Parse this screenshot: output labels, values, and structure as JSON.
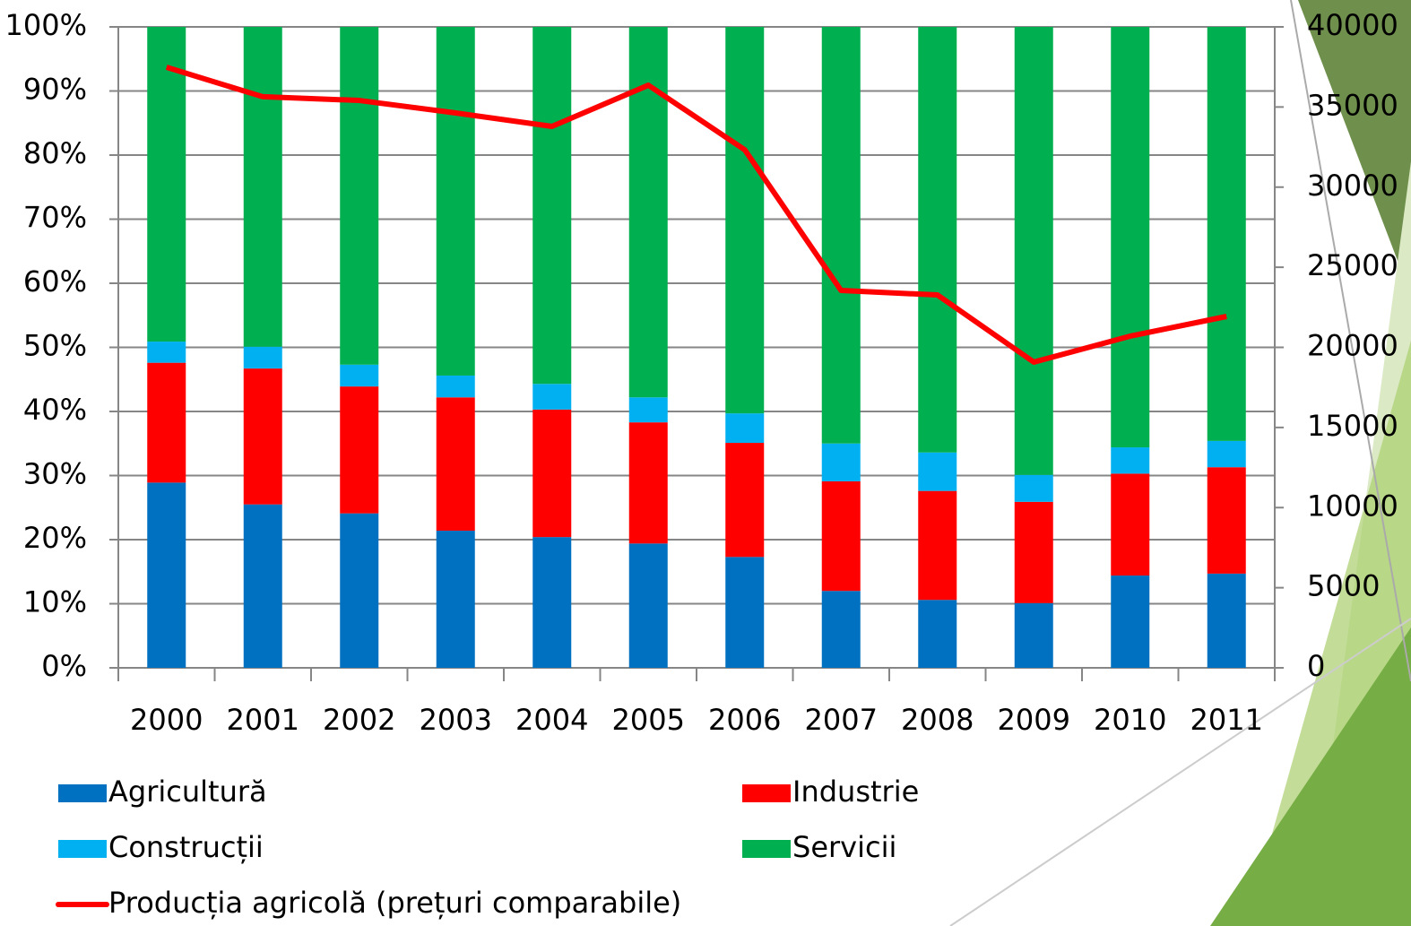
{
  "chart_data": {
    "type": "stacked-bar-line",
    "categories": [
      "2000",
      "2001",
      "2002",
      "2003",
      "2004",
      "2005",
      "2006",
      "2007",
      "2008",
      "2009",
      "2010",
      "2011"
    ],
    "series": [
      {
        "name": "Agricultură",
        "color": "#0070c0",
        "values": [
          28.9,
          25.5,
          24.1,
          21.4,
          20.4,
          19.4,
          17.3,
          12.0,
          10.6,
          10.1,
          14.4,
          14.7
        ]
      },
      {
        "name": "Industrie",
        "color": "#ff0000",
        "values": [
          18.7,
          21.2,
          19.8,
          20.8,
          19.9,
          18.9,
          17.8,
          17.1,
          17.0,
          15.8,
          15.9,
          16.6
        ]
      },
      {
        "name": "Construcții",
        "color": "#00b0f0",
        "values": [
          3.3,
          3.4,
          3.4,
          3.4,
          4.0,
          3.9,
          4.6,
          5.9,
          6.0,
          4.2,
          4.1,
          4.1
        ]
      },
      {
        "name": "Servicii",
        "color": "#00b050",
        "values": [
          49.1,
          49.9,
          52.7,
          54.4,
          55.7,
          57.8,
          60.3,
          65.0,
          66.4,
          69.9,
          65.6,
          64.6
        ]
      },
      {
        "name": "Producția agricolă (prețuri comparabile)",
        "color": "#ff0000",
        "axis": "y2",
        "type": "line",
        "values": [
          37480,
          35640,
          35410,
          34630,
          33790,
          36360,
          32330,
          23550,
          23270,
          19080,
          20700,
          21930
        ]
      }
    ],
    "ylim": [
      0,
      100
    ],
    "yticks": [
      {
        "value": 0,
        "label": "0%"
      },
      {
        "value": 10,
        "label": "10%"
      },
      {
        "value": 20,
        "label": "20%"
      },
      {
        "value": 30,
        "label": "30%"
      },
      {
        "value": 40,
        "label": "40%"
      },
      {
        "value": 50,
        "label": "50%"
      },
      {
        "value": 60,
        "label": "60%"
      },
      {
        "value": 70,
        "label": "70%"
      },
      {
        "value": 80,
        "label": "80%"
      },
      {
        "value": 90,
        "label": "90%"
      },
      {
        "value": 100,
        "label": "100%"
      }
    ],
    "y2lim": [
      0,
      40000
    ],
    "y2ticks": [
      0,
      5000,
      10000,
      15000,
      20000,
      25000,
      30000,
      35000,
      40000
    ],
    "grid": true,
    "legend": "bottom"
  }
}
